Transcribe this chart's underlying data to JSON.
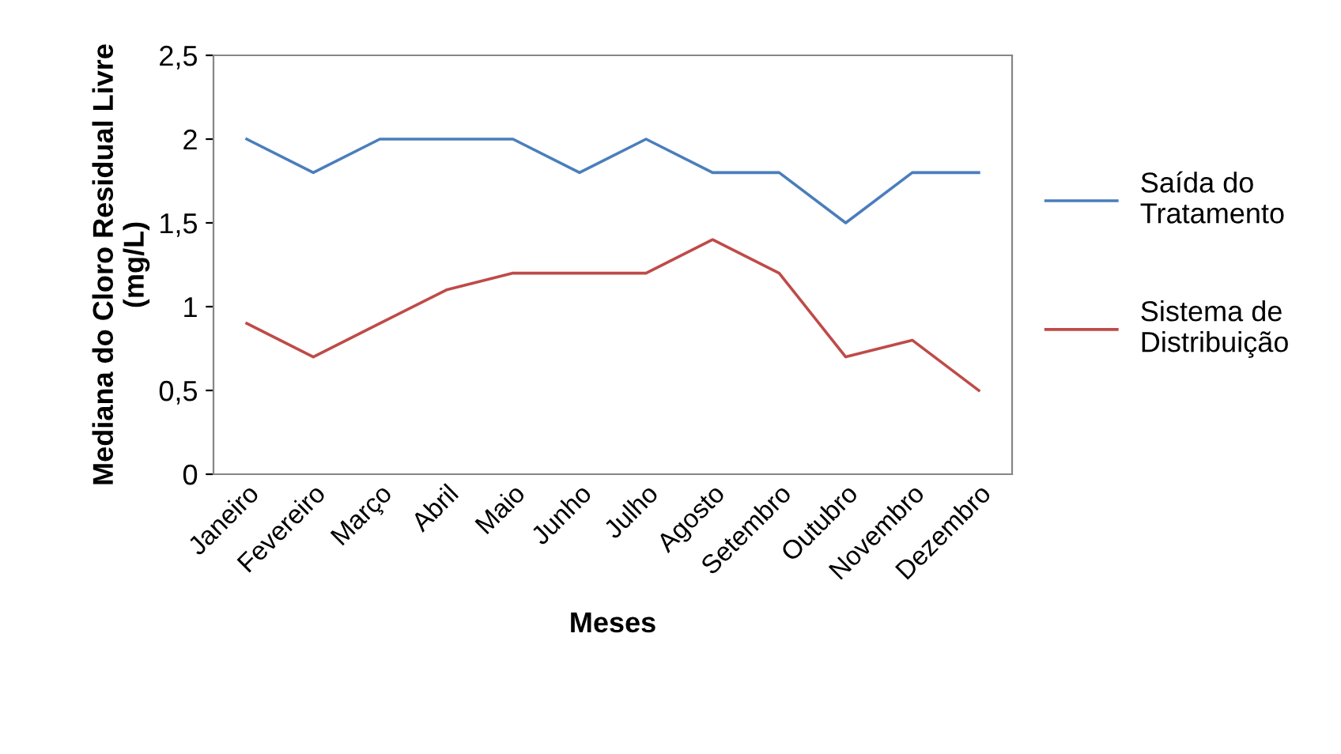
{
  "chart_data": {
    "type": "line",
    "ylabel": "Mediana do Cloro Residual Livre (mg/L)",
    "xlabel": "Meses",
    "categories": [
      "Janeiro",
      "Fevereiro",
      "Março",
      "Abril",
      "Maio",
      "Junho",
      "Julho",
      "Agosto",
      "Setembro",
      "Outubro",
      "Novembro",
      "Dezembro"
    ],
    "series": [
      {
        "name": "Saída do Tratamento",
        "color": "#4a7ebb",
        "values": [
          2.0,
          1.8,
          2.0,
          2.0,
          2.0,
          1.8,
          2.0,
          1.8,
          1.8,
          1.5,
          1.8,
          1.8
        ]
      },
      {
        "name": "Sistema de Distribuição",
        "color": "#be4b48",
        "values": [
          0.9,
          0.7,
          0.9,
          1.1,
          1.2,
          1.2,
          1.2,
          1.4,
          1.2,
          0.7,
          0.8,
          0.5
        ]
      }
    ],
    "ylim": [
      0,
      2.5
    ],
    "yticks": [
      0,
      {
        "value": 0.5,
        "label": "0,5"
      },
      1,
      {
        "value": 1.5,
        "label": "1,5"
      },
      2,
      {
        "value": 2.5,
        "label": "2,5"
      }
    ],
    "grid": false,
    "legend": "right",
    "marker": "none",
    "line_style": "solid"
  }
}
